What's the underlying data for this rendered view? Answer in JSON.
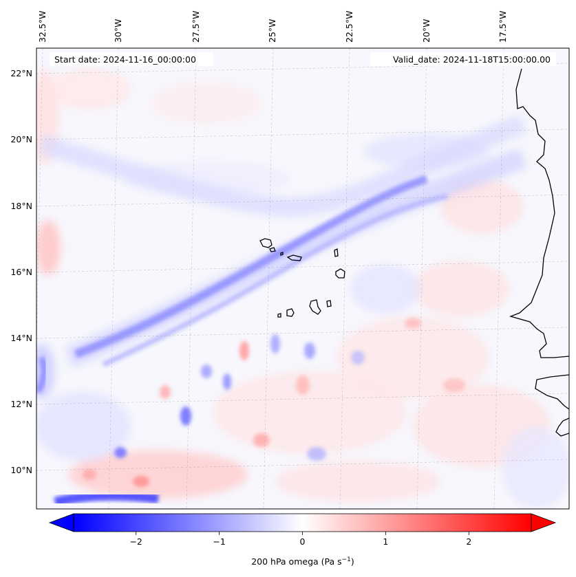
{
  "map": {
    "start_date": "Start date: 2024-11-16_00:00:00",
    "valid_date": "Valid_date: 2024-11-18T15:00:00.00",
    "lon_labels": [
      "32.5°W",
      "30°W",
      "27.5°W",
      "25°W",
      "22.5°W",
      "20°W",
      "17.5°W"
    ],
    "lat_labels": [
      "22°N",
      "20°N",
      "18°N",
      "16°N",
      "14°N",
      "12°N",
      "10°N"
    ],
    "field": "200 hPa omega",
    "region": "Cape Verde and West African coast"
  },
  "colorbar": {
    "label_main": "200 hPa omega (Pa s",
    "label_sup": "−1",
    "label_end": ")",
    "ticks": [
      "−2",
      "−1",
      "0",
      "1",
      "2"
    ],
    "min": -2.75,
    "max": 2.75,
    "colors": {
      "negative": "#0000ff",
      "zero": "#ffffff",
      "positive": "#ff0000"
    }
  }
}
